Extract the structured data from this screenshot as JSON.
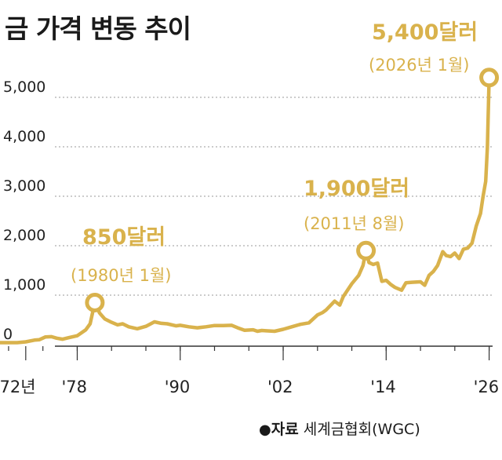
{
  "title": "금 가격 변동 추이",
  "source": {
    "bullet": "●",
    "label": "자료",
    "name": "세계금협회(WGC)"
  },
  "colors": {
    "line": "#d9b24c",
    "grid": "#9a9a9a",
    "axis": "#333333",
    "text": "#222222"
  },
  "chart_data": {
    "type": "line",
    "title": "금 가격 변동 추이",
    "xlabel": "",
    "ylabel": "",
    "xlim": [
      1969,
      2027.5
    ],
    "ylim": [
      0,
      5000
    ],
    "yticks": [
      0,
      1000,
      2000,
      3000,
      4000,
      5000
    ],
    "ytick_labels": [
      "0",
      "1,000",
      "2,000",
      "3,000",
      "4,000",
      "5,000"
    ],
    "xticks": [
      1972,
      1978,
      1990,
      2002,
      2014,
      2026
    ],
    "xtick_labels": [
      "1972년",
      "'78",
      "'90",
      "'02",
      "'14",
      "'26"
    ],
    "grid": true,
    "series": [
      {
        "x": [
          1969.0,
          1971.0,
          1972.0,
          1973.0,
          1973.6,
          1974.3,
          1975.0,
          1975.6,
          1976.3,
          1977.0,
          1978.0,
          1979.0,
          1979.5,
          1980.05,
          1980.6,
          1981.2,
          1982.0,
          1982.7,
          1983.3,
          1984.0,
          1985.0,
          1986.0,
          1987.0,
          1987.8,
          1988.5,
          1989.5,
          1990.0,
          1991.0,
          1992.0,
          1993.0,
          1994.0,
          1995.0,
          1996.0,
          1996.7,
          1997.5,
          1998.5,
          1999.0,
          1999.5,
          2000.0,
          2001.0,
          2002.0,
          2003.0,
          2004.0,
          2005.0,
          2006.0,
          2006.6,
          2007.0,
          2008.0,
          2008.6,
          2009.0,
          2010.0,
          2010.8,
          2011.3,
          2011.65,
          2012.0,
          2012.5,
          2013.0,
          2013.5,
          2014.0,
          2014.5,
          2015.0,
          2015.8,
          2016.3,
          2017.0,
          2018.0,
          2018.5,
          2019.0,
          2019.5,
          2020.0,
          2020.6,
          2021.0,
          2021.5,
          2022.0,
          2022.5,
          2023.0,
          2023.5,
          2024.0,
          2024.5,
          2025.0,
          2025.3,
          2025.6,
          2025.8,
          2026.0
        ],
        "values": [
          40,
          40,
          55,
          90,
          100,
          155,
          160,
          130,
          110,
          140,
          180,
          300,
          420,
          850,
          640,
          520,
          450,
          400,
          420,
          360,
          320,
          370,
          460,
          430,
          420,
          380,
          390,
          360,
          340,
          360,
          385,
          385,
          390,
          340,
          290,
          300,
          270,
          285,
          280,
          270,
          310,
          360,
          410,
          440,
          600,
          650,
          700,
          880,
          800,
          970,
          1230,
          1400,
          1600,
          1900,
          1660,
          1620,
          1650,
          1280,
          1300,
          1220,
          1160,
          1100,
          1250,
          1260,
          1270,
          1200,
          1400,
          1480,
          1600,
          1880,
          1800,
          1780,
          1850,
          1740,
          1930,
          1950,
          2050,
          2400,
          2650,
          3000,
          3300,
          4000,
          5400
        ]
      }
    ],
    "annotations": [
      {
        "x": 1980.05,
        "y": 850,
        "label": "850달러",
        "date": "(1980년 1월)"
      },
      {
        "x": 2011.65,
        "y": 1900,
        "label": "1,900달러",
        "date": "(2011년 8월)"
      },
      {
        "x": 2026.0,
        "y": 5400,
        "label": "5,400달러",
        "date": "(2026년 1월)"
      }
    ]
  }
}
